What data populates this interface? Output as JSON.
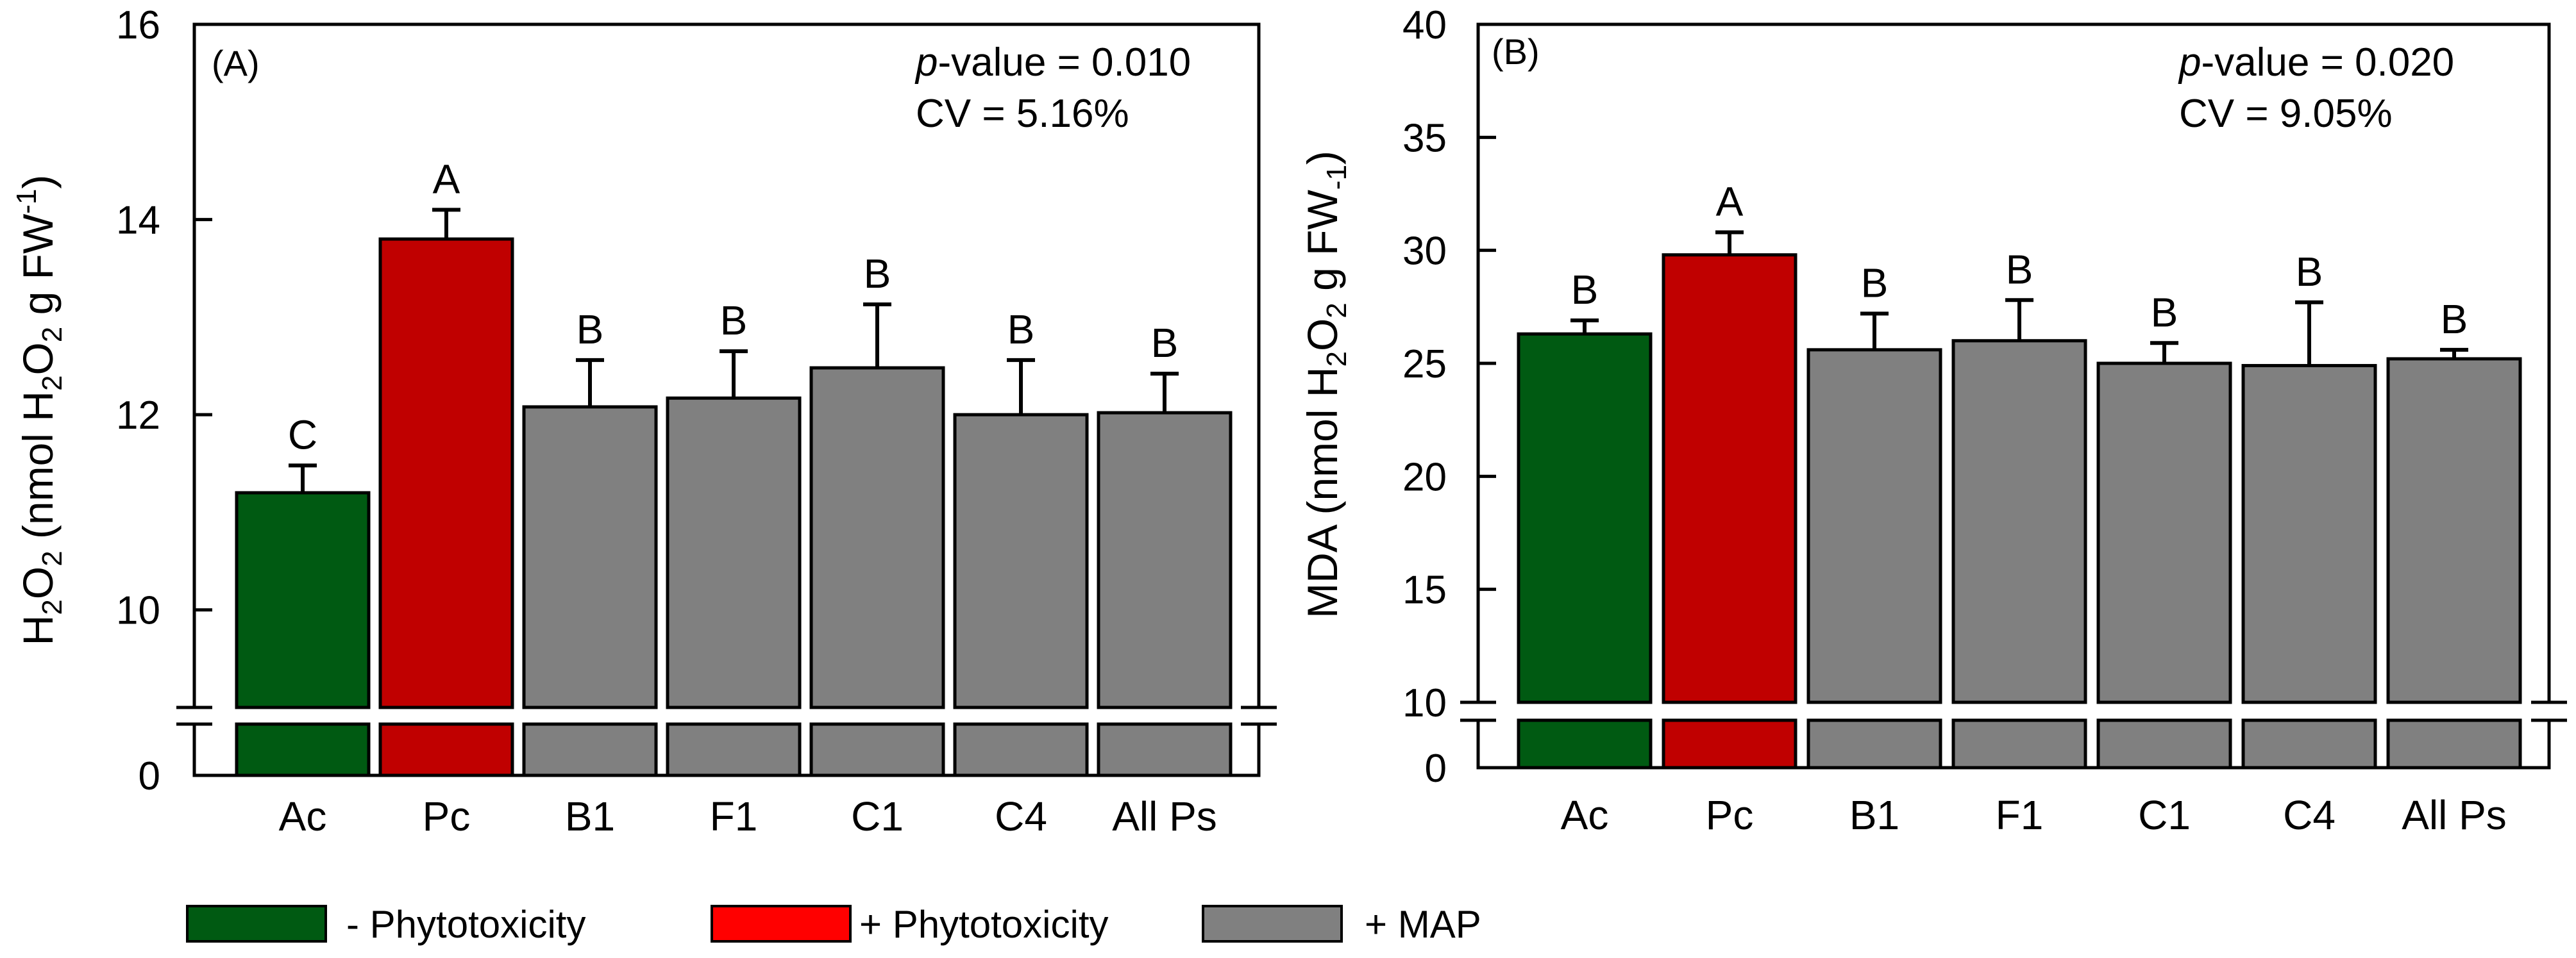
{
  "colors": {
    "minus_phytotoxicity": "#005a12",
    "plus_phytotoxicity": "#c00000",
    "map": "#808080",
    "legend_plus_phytotoxicity": "#ff0000",
    "axis": "#000000"
  },
  "legend": [
    {
      "label": "- Phytotoxicity",
      "color_key": "minus_phytotoxicity"
    },
    {
      "label": "+ Phytotoxicity",
      "color_key": "legend_plus_phytotoxicity"
    },
    {
      "label": "+ MAP",
      "color_key": "map"
    }
  ],
  "chart_data": [
    {
      "type": "bar",
      "panel": "(A)",
      "ylabel": "H2O2 (nmol H2O2 g FW-1)",
      "categories": [
        "Ac",
        "Pc",
        "B1",
        "F1",
        "C1",
        "C4",
        "All Ps"
      ],
      "values": [
        11.2,
        13.8,
        12.08,
        12.17,
        12.48,
        12.0,
        12.02
      ],
      "errors": [
        0.28,
        0.3,
        0.48,
        0.48,
        0.65,
        0.56,
        0.4
      ],
      "letters": [
        "C",
        "A",
        "B",
        "B",
        "B",
        "B",
        "B"
      ],
      "color_keys": [
        "minus_phytotoxicity",
        "plus_phytotoxicity",
        "map",
        "map",
        "map",
        "map",
        "map"
      ],
      "ylim": [
        9,
        16
      ],
      "yticks": [
        10,
        12,
        14,
        16
      ],
      "broken_axis": {
        "lower_tick": 0,
        "lower_label": "0"
      },
      "stats": {
        "p_label": "p",
        "p_rest": "-value = 0.010",
        "cv": "CV = 5.16%"
      }
    },
    {
      "type": "bar",
      "panel": "(B)",
      "ylabel": "MDA (nmol H2O2 g FW-1)",
      "categories": [
        "Ac",
        "Pc",
        "B1",
        "F1",
        "C1",
        "C4",
        "All Ps"
      ],
      "values": [
        26.3,
        29.8,
        25.6,
        26.0,
        25.0,
        24.9,
        25.2
      ],
      "errors": [
        0.6,
        1.0,
        1.6,
        1.8,
        0.9,
        2.8,
        0.4
      ],
      "letters": [
        "B",
        "A",
        "B",
        "B",
        "B",
        "B",
        "B"
      ],
      "color_keys": [
        "minus_phytotoxicity",
        "plus_phytotoxicity",
        "map",
        "map",
        "map",
        "map",
        "map"
      ],
      "ylim": [
        10,
        40
      ],
      "yticks": [
        15,
        20,
        25,
        30,
        35,
        40
      ],
      "broken_axis": {
        "break_tick": 10,
        "break_label": "10",
        "lower_tick": 0,
        "lower_label": "0"
      },
      "stats": {
        "p_label": "p",
        "p_rest": "-value = 0.020",
        "cv": "CV = 9.05%"
      }
    }
  ]
}
